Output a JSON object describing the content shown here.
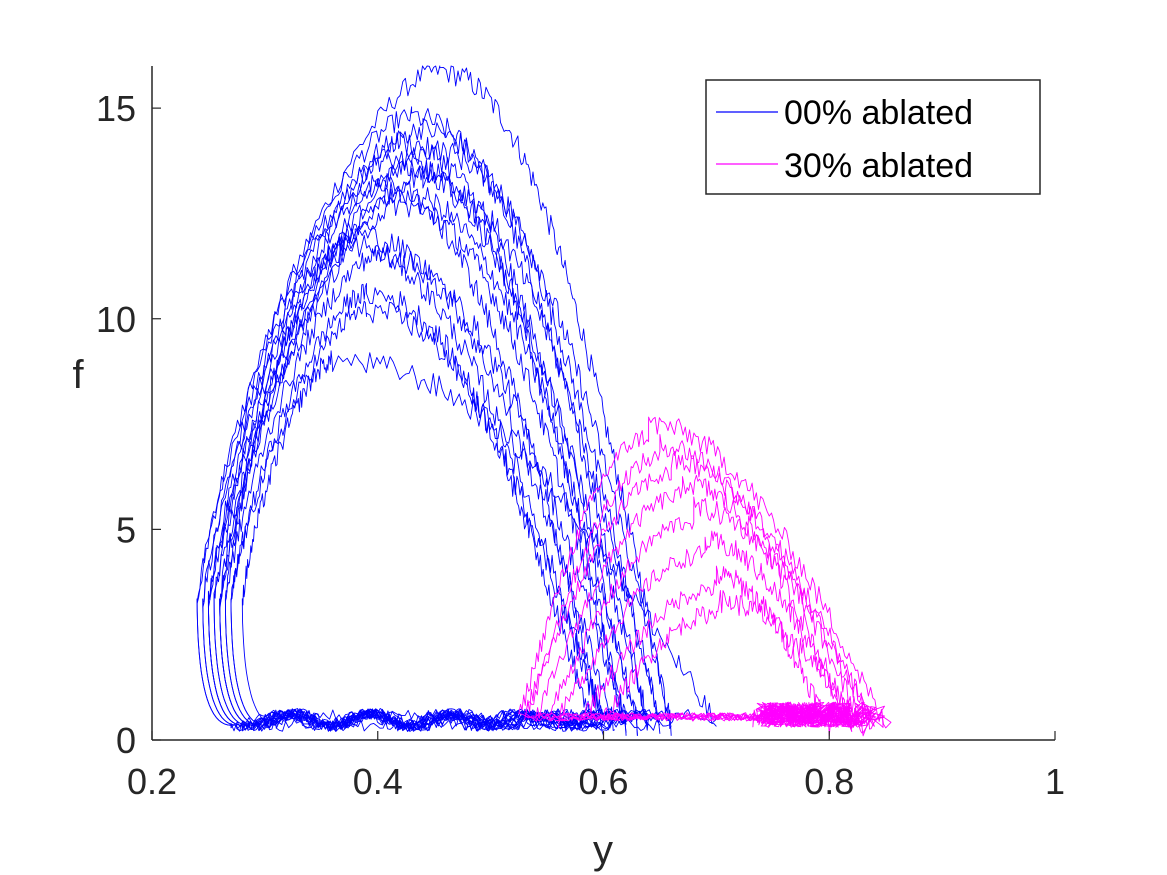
{
  "chart_data": {
    "type": "line",
    "title": "",
    "xlabel": "y",
    "ylabel": "f",
    "xlim": [
      0.2,
      1.0
    ],
    "ylim": [
      0,
      16
    ],
    "xticks": [
      0.2,
      0.4,
      0.6,
      0.8,
      1.0
    ],
    "xtick_labels": [
      "0.2",
      "0.4",
      "0.6",
      "0.8",
      "1"
    ],
    "yticks": [
      0,
      5,
      10,
      15
    ],
    "ytick_labels": [
      "0",
      "5",
      "10",
      "15"
    ],
    "grid": false,
    "legend": {
      "placement": "top-right",
      "entries": [
        {
          "name": "00% ablated",
          "color": "#0000ff"
        },
        {
          "name": "30% ablated",
          "color": "#ff00ff"
        }
      ]
    },
    "series": [
      {
        "name": "00% ablated",
        "color": "#0000ff",
        "trajectories": [
          {
            "start_y": 0.24,
            "peak_y": 0.455,
            "peak_f": 15.9,
            "end_y": 0.66
          },
          {
            "start_y": 0.24,
            "peak_y": 0.43,
            "peak_f": 14.8,
            "end_y": 0.64
          },
          {
            "start_y": 0.245,
            "peak_y": 0.44,
            "peak_f": 14.5,
            "end_y": 0.65
          },
          {
            "start_y": 0.245,
            "peak_y": 0.42,
            "peak_f": 14.2,
            "end_y": 0.63
          },
          {
            "start_y": 0.25,
            "peak_y": 0.45,
            "peak_f": 14.0,
            "end_y": 0.66
          },
          {
            "start_y": 0.25,
            "peak_y": 0.41,
            "peak_f": 13.8,
            "end_y": 0.64
          },
          {
            "start_y": 0.25,
            "peak_y": 0.43,
            "peak_f": 13.6,
            "end_y": 0.62
          },
          {
            "start_y": 0.255,
            "peak_y": 0.44,
            "peak_f": 13.4,
            "end_y": 0.65
          },
          {
            "start_y": 0.255,
            "peak_y": 0.4,
            "peak_f": 13.2,
            "end_y": 0.6
          },
          {
            "start_y": 0.26,
            "peak_y": 0.42,
            "peak_f": 13.0,
            "end_y": 0.63
          },
          {
            "start_y": 0.26,
            "peak_y": 0.42,
            "peak_f": 12.7,
            "end_y": 0.62
          },
          {
            "start_y": 0.26,
            "peak_y": 0.38,
            "peak_f": 12.0,
            "end_y": 0.61
          },
          {
            "start_y": 0.265,
            "peak_y": 0.37,
            "peak_f": 11.8,
            "end_y": 0.6
          },
          {
            "start_y": 0.265,
            "peak_y": 0.4,
            "peak_f": 11.5,
            "end_y": 0.62
          },
          {
            "start_y": 0.27,
            "peak_y": 0.39,
            "peak_f": 10.6,
            "end_y": 0.59
          },
          {
            "start_y": 0.27,
            "peak_y": 0.39,
            "peak_f": 10.2,
            "end_y": 0.6
          },
          {
            "start_y": 0.28,
            "peak_y": 0.36,
            "peak_f": 9.0,
            "end_y": 0.7
          }
        ]
      },
      {
        "name": "30% ablated",
        "color": "#ff00ff",
        "trajectories": [
          {
            "start_y": 0.525,
            "peak_y": 0.64,
            "peak_f": 7.2,
            "end_y": 0.85
          },
          {
            "start_y": 0.53,
            "peak_y": 0.65,
            "peak_f": 6.7,
            "end_y": 0.83
          },
          {
            "start_y": 0.53,
            "peak_y": 0.66,
            "peak_f": 6.3,
            "end_y": 0.84
          },
          {
            "start_y": 0.54,
            "peak_y": 0.67,
            "peak_f": 5.8,
            "end_y": 0.82
          },
          {
            "start_y": 0.55,
            "peak_y": 0.68,
            "peak_f": 5.2,
            "end_y": 0.84
          },
          {
            "start_y": 0.56,
            "peak_y": 0.69,
            "peak_f": 4.4,
            "end_y": 0.82
          },
          {
            "start_y": 0.58,
            "peak_y": 0.7,
            "peak_f": 3.6,
            "end_y": 0.8
          },
          {
            "start_y": 0.6,
            "peak_y": 0.7,
            "peak_f": 3.0,
            "end_y": 0.83
          }
        ]
      }
    ]
  }
}
